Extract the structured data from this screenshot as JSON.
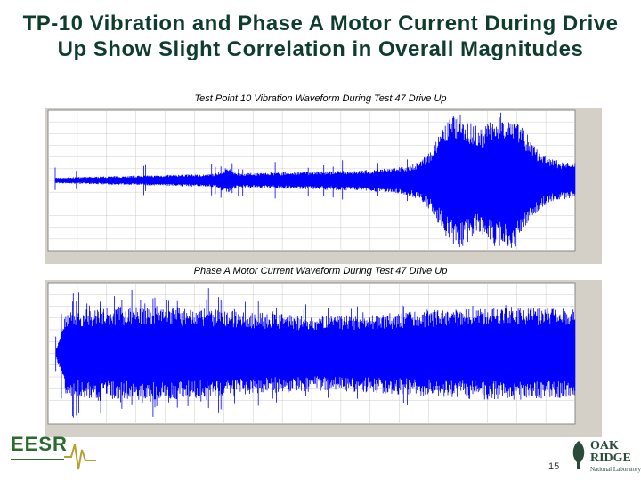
{
  "title": "TP-10 Vibration and Phase A Motor Current During Drive Up Show Slight Correlation in Overall Magnitudes",
  "figures": [
    {
      "caption": "Test Point 10 Vibration Waveform During Test 47 Drive Up"
    },
    {
      "caption": "Phase A Motor Current Waveform During Test 47 Drive Up"
    }
  ],
  "footer": {
    "page_number": "15",
    "logo_left": "EESR",
    "logo_right_top": "OAK",
    "logo_right_middle": "RIDGE",
    "logo_right_bottom": "National Laboratory"
  }
}
